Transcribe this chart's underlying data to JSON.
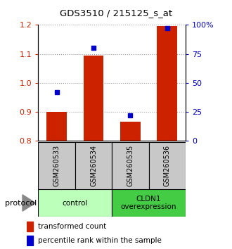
{
  "title": "GDS3510 / 215125_s_at",
  "samples": [
    "GSM260533",
    "GSM260534",
    "GSM260535",
    "GSM260536"
  ],
  "bar_values": [
    0.9,
    1.095,
    0.865,
    1.195
  ],
  "bar_bottom": 0.8,
  "percentile_values": [
    42,
    80,
    22,
    97
  ],
  "ylim_left": [
    0.8,
    1.2
  ],
  "ylim_right": [
    0,
    100
  ],
  "yticks_left": [
    0.8,
    0.9,
    1.0,
    1.1,
    1.2
  ],
  "yticks_right": [
    0,
    25,
    50,
    75,
    100
  ],
  "ytick_labels_right": [
    "0",
    "25",
    "50",
    "75",
    "100%"
  ],
  "bar_color": "#cc2200",
  "dot_color": "#0000cc",
  "grid_color": "#999999",
  "bg_plot": "#ffffff",
  "sample_box_color": "#c8c8c8",
  "control_box_color": "#bbffbb",
  "overexpr_box_color": "#44cc44",
  "groups": [
    {
      "label": "control",
      "samples": [
        0,
        1
      ],
      "color": "#bbffbb"
    },
    {
      "label": "CLDN1\noverexpression",
      "samples": [
        2,
        3
      ],
      "color": "#44cc44"
    }
  ],
  "protocol_label": "protocol",
  "legend_red_label": "transformed count",
  "legend_blue_label": "percentile rank within the sample",
  "bar_width": 0.55
}
